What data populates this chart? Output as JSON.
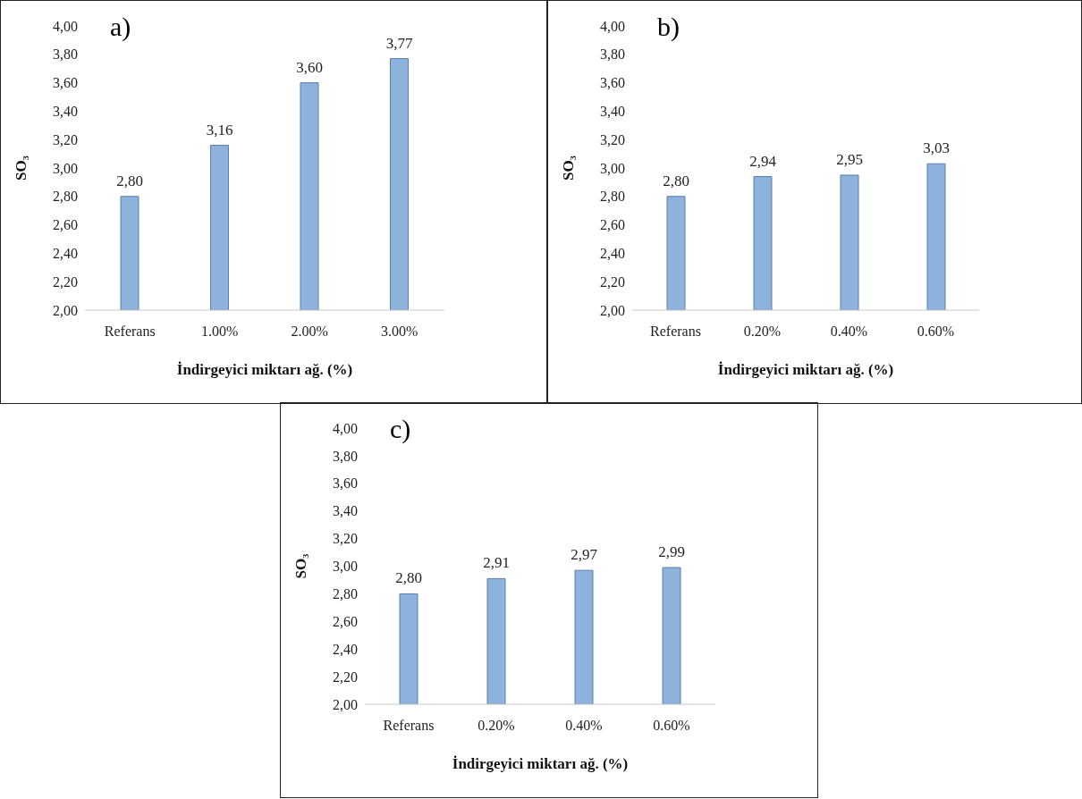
{
  "chart_data": [
    {
      "type": "bar",
      "title": "a)",
      "ylabel": "SO₃",
      "xlabel": "İndirgeyici miktarı ağ. (%)",
      "categories": [
        "Referans",
        "1.00%",
        "2.00%",
        "3.00%"
      ],
      "values": [
        2.8,
        3.16,
        3.6,
        3.77
      ],
      "value_labels": [
        "2,80",
        "3,16",
        "3,60",
        "3,77"
      ],
      "color": "#8db3dc",
      "ylim": [
        2,
        4
      ],
      "yticks": [
        {
          "value": 2,
          "label": "2,00"
        },
        {
          "value": 2.2,
          "label": "2,20"
        },
        {
          "value": 2.4,
          "label": "2,40"
        },
        {
          "value": 2.6,
          "label": "2,60"
        },
        {
          "value": 2.8,
          "label": "2,80"
        },
        {
          "value": 3,
          "label": "3,00"
        },
        {
          "value": 3.2,
          "label": "3,20"
        },
        {
          "value": 3.4,
          "label": "3,40"
        },
        {
          "value": 3.6,
          "label": "3,60"
        },
        {
          "value": 3.8,
          "label": "3,80"
        },
        {
          "value": 4,
          "label": "4,00"
        }
      ]
    },
    {
      "type": "bar",
      "title": "b)",
      "ylabel": "SO₃",
      "xlabel": "İndirgeyici miktarı ağ. (%)",
      "categories": [
        "Referans",
        "0.20%",
        "0.40%",
        "0.60%"
      ],
      "values": [
        2.8,
        2.94,
        2.95,
        3.03
      ],
      "value_labels": [
        "2,80",
        "2,94",
        "2,95",
        "3,03"
      ],
      "color": "#8db3dc",
      "ylim": [
        2,
        4
      ],
      "yticks": [
        {
          "value": 2,
          "label": "2,00"
        },
        {
          "value": 2.2,
          "label": "2,20"
        },
        {
          "value": 2.4,
          "label": "2,40"
        },
        {
          "value": 2.6,
          "label": "2,60"
        },
        {
          "value": 2.8,
          "label": "2,80"
        },
        {
          "value": 3,
          "label": "3,00"
        },
        {
          "value": 3.2,
          "label": "3,20"
        },
        {
          "value": 3.4,
          "label": "3,40"
        },
        {
          "value": 3.6,
          "label": "3,60"
        },
        {
          "value": 3.8,
          "label": "3,80"
        },
        {
          "value": 4,
          "label": "4,00"
        }
      ]
    },
    {
      "type": "bar",
      "title": "c)",
      "ylabel": "SO₃",
      "xlabel": "İndirgeyici miktarı ağ. (%)",
      "categories": [
        "Referans",
        "0.20%",
        "0.40%",
        "0.60%"
      ],
      "values": [
        2.8,
        2.91,
        2.97,
        2.99
      ],
      "value_labels": [
        "2,80",
        "2,91",
        "2,97",
        "2,99"
      ],
      "color": "#8db3dc",
      "ylim": [
        2,
        4
      ],
      "yticks": [
        {
          "value": 2,
          "label": "2,00"
        },
        {
          "value": 2.2,
          "label": "2,20"
        },
        {
          "value": 2.4,
          "label": "2,40"
        },
        {
          "value": 2.6,
          "label": "2,60"
        },
        {
          "value": 2.8,
          "label": "2,80"
        },
        {
          "value": 3,
          "label": "3,00"
        },
        {
          "value": 3.2,
          "label": "3,20"
        },
        {
          "value": 3.4,
          "label": "3,40"
        },
        {
          "value": 3.6,
          "label": "3,60"
        },
        {
          "value": 3.8,
          "label": "3,80"
        },
        {
          "value": 4,
          "label": "4,00"
        }
      ]
    }
  ]
}
